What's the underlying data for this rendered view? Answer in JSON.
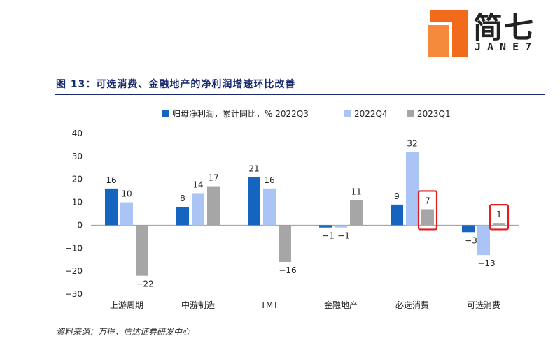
{
  "logo": {
    "text": "简七",
    "subtext": "JANE7"
  },
  "figure_title": "图 13：可选消费、金融地产的净利润增速环比改善",
  "source": "资料来源：万得，信达证券研发中心",
  "colors": {
    "series1": "#1565c0",
    "series2": "#a9c4f5",
    "series3": "#a6a6a6",
    "highlight": "#e02020"
  },
  "chart_data": {
    "type": "bar",
    "legend_prefix": "归母净利润，累计同比，%",
    "categories": [
      "上游周期",
      "中游制造",
      "TMT",
      "金融地产",
      "必选消费",
      "可选消费"
    ],
    "series": [
      {
        "name": "2022Q3",
        "values": [
          16,
          8,
          21,
          -1,
          9,
          -3
        ]
      },
      {
        "name": "2022Q4",
        "values": [
          10,
          14,
          16,
          -1,
          32,
          -13
        ]
      },
      {
        "name": "2023Q1",
        "values": [
          -22,
          17,
          -16,
          11,
          7,
          1
        ]
      }
    ],
    "ylim": [
      -30,
      40
    ],
    "yticks": [
      -30,
      -20,
      -10,
      0,
      10,
      20,
      30,
      40
    ],
    "highlighted": [
      [
        4,
        2
      ],
      [
        5,
        2
      ]
    ]
  }
}
